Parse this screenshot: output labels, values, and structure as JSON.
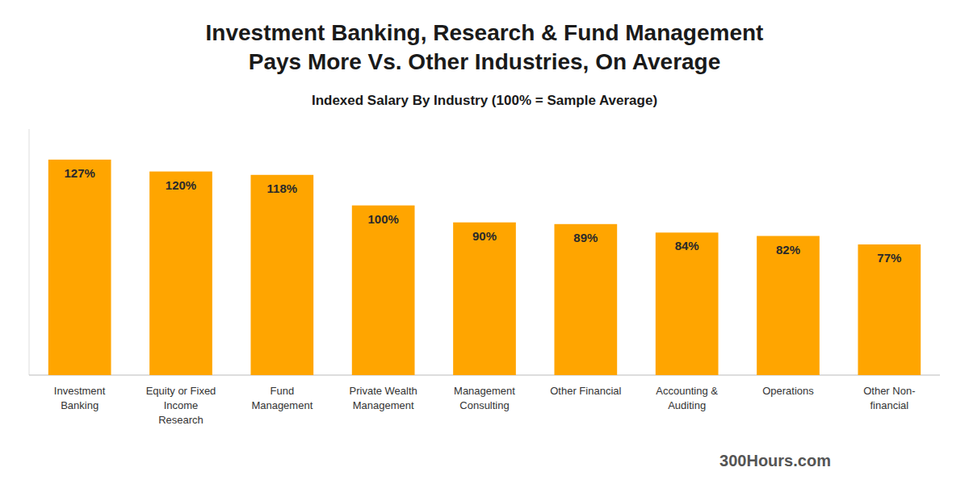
{
  "chart_data": {
    "type": "bar",
    "title": "Investment Banking, Research & Fund Management\nPays More Vs. Other Industries, On Average",
    "subtitle": "Indexed Salary By Industry (100% = Sample Average)",
    "annotation": "300Hours.com",
    "categories": [
      "Investment\nBanking",
      "Equity or Fixed\nIncome\nResearch",
      "Fund\nManagement",
      "Private Wealth\nManagement",
      "Management\nConsulting",
      "Other Financial",
      "Accounting &\nAuditing",
      "Operations",
      "Other Non-\nfinancial"
    ],
    "values": [
      127,
      120,
      118,
      100,
      90,
      89,
      84,
      82,
      77
    ],
    "value_labels": [
      "127%",
      "120%",
      "118%",
      "100%",
      "90%",
      "89%",
      "84%",
      "82%",
      "77%"
    ],
    "data_labels": true,
    "color": "#FFA500",
    "ylim": [
      0,
      145
    ],
    "tick_labels": "x",
    "grid": false
  }
}
